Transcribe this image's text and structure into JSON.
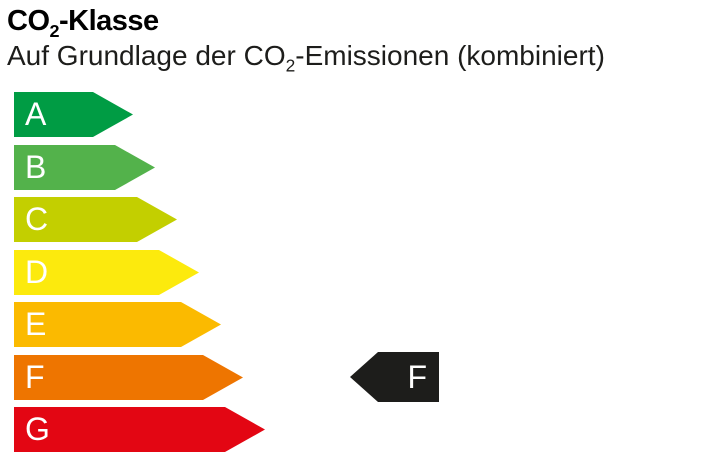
{
  "header": {
    "title": {
      "prefix": "CO",
      "subscript": "2",
      "suffix": "-Klasse"
    },
    "subtitle": {
      "prefix": "Auf Grundlage der CO",
      "subscript": "2",
      "suffix": "-Emissionen (kombiniert)"
    }
  },
  "chart_data": {
    "type": "bar",
    "title": "CO2-Klasse",
    "subtitle": "Auf Grundlage der CO2-Emissionen (kombiniert)",
    "orientation": "horizontal",
    "categories": [
      "A",
      "B",
      "C",
      "D",
      "E",
      "F",
      "G"
    ],
    "values": [
      79,
      101,
      123,
      145,
      167,
      189,
      211
    ],
    "selected_class": "F",
    "letter_color": "#ffffff",
    "classes": [
      {
        "label": "A",
        "color": "#009C44",
        "body_width": 79
      },
      {
        "label": "B",
        "color": "#53B24B",
        "body_width": 101
      },
      {
        "label": "C",
        "color": "#C3CF00",
        "body_width": 123
      },
      {
        "label": "D",
        "color": "#FCEA0D",
        "body_width": 145
      },
      {
        "label": "E",
        "color": "#FBBA00",
        "body_width": 167
      },
      {
        "label": "F",
        "color": "#EE7500",
        "body_width": 189
      },
      {
        "label": "G",
        "color": "#E30613",
        "body_width": 211
      }
    ]
  },
  "indicator": {
    "label": "F",
    "class_index": 5,
    "color": "#1D1D1B",
    "text_color": "#ffffff"
  }
}
